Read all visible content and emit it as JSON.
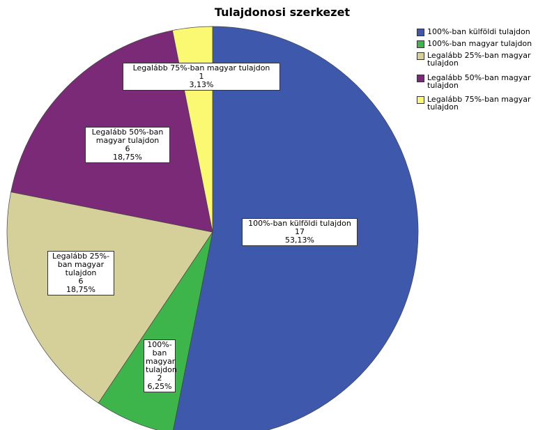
{
  "chart_data": {
    "type": "pie",
    "title": "Tulajdonosi szerkezet",
    "categories": [
      "100%-ban külföldi tulajdon",
      "100%-ban magyar tulajdon",
      "Legalább 25%-ban magyar tulajdon",
      "Legalább 50%-ban magyar tulajdon",
      "Legalább 75%-ban magyar tulajdon"
    ],
    "values": [
      17,
      2,
      6,
      6,
      1
    ],
    "percentages": [
      53.13,
      6.25,
      18.75,
      18.75,
      3.13
    ],
    "percentage_labels": [
      "53,13%",
      "6,25%",
      "18,75%",
      "18,75%",
      "3,13%"
    ],
    "colors": [
      "#3e58ac",
      "#3eb54a",
      "#d5cf9a",
      "#7a2a77",
      "#fbf872"
    ],
    "legend": "right"
  }
}
